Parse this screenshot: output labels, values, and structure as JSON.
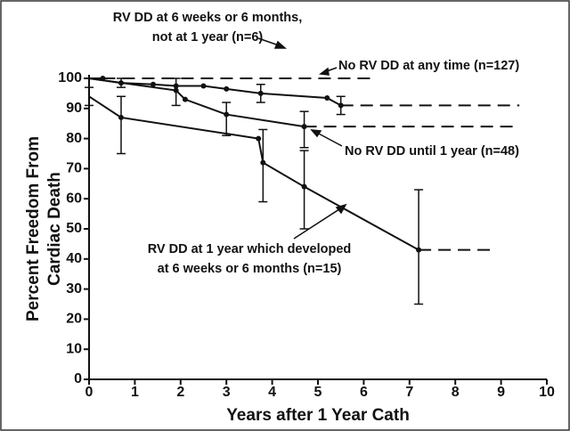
{
  "chart_data": {
    "type": "line",
    "xlabel": "Years after 1 Year Cath",
    "ylabel_lines": [
      "Percent Freedom From",
      "Cardiac Death"
    ],
    "xlim": [
      0,
      10
    ],
    "xticks": [
      0,
      1,
      2,
      3,
      4,
      5,
      6,
      7,
      8,
      9,
      10
    ],
    "ylim": [
      0,
      100
    ],
    "yticks": [
      0,
      10,
      20,
      30,
      40,
      50,
      60,
      70,
      80,
      90,
      100
    ],
    "color": "#111111",
    "series": [
      {
        "label_lines": [
          "RV DD at 6 weeks or 6 months,",
          "not at 1 year (n=6)"
        ],
        "x": [
          0,
          0.3
        ],
        "values": [
          100,
          100
        ],
        "lower": [
          null,
          null
        ],
        "upper": [
          null,
          null
        ],
        "tail_x": 6.2
      },
      {
        "label_lines": [
          "No RV DD at any time (n=127)"
        ],
        "x": [
          0,
          0.7,
          1.4,
          1.9,
          2.5,
          3,
          3.75,
          5.2,
          5.5
        ],
        "values": [
          100,
          98.5,
          98,
          97.5,
          97.5,
          96.5,
          95,
          93.5,
          91
        ],
        "lower": [
          null,
          97,
          null,
          null,
          null,
          null,
          92,
          null,
          88
        ],
        "upper": [
          null,
          100,
          null,
          null,
          null,
          null,
          98,
          null,
          94
        ],
        "tail_x": 9.4
      },
      {
        "label_lines": [
          "No RV DD until 1 year (n=48)"
        ],
        "x": [
          0,
          1.9,
          2.1,
          3,
          4.7
        ],
        "values": [
          100,
          96,
          93,
          88,
          84
        ],
        "lower": [
          null,
          91,
          null,
          81,
          77
        ],
        "upper": [
          null,
          100,
          null,
          92,
          89
        ],
        "tail_x": 9.4
      },
      {
        "label_lines": [
          "RV DD at 1 year which developed",
          "at 6 weeks or 6 months (n=15)"
        ],
        "x": [
          0,
          0.7,
          3.7,
          3.8,
          4.7,
          7.2
        ],
        "values": [
          94,
          87,
          80,
          72,
          64,
          43
        ],
        "lower": [
          91,
          75,
          null,
          59,
          50,
          25
        ],
        "upper": [
          97,
          94,
          null,
          83,
          76,
          63
        ],
        "tail_x": 8.9
      }
    ]
  }
}
